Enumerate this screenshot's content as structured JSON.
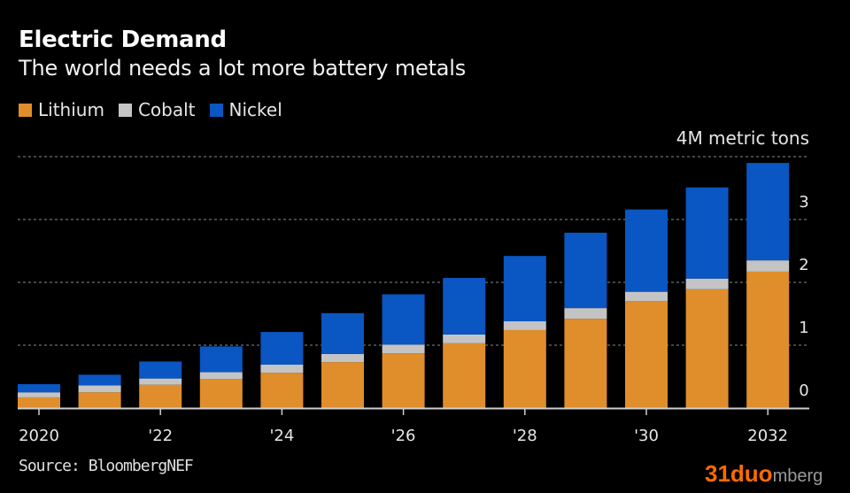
{
  "header": {
    "title": "Electric Demand",
    "subtitle": "The world needs a lot more battery metals"
  },
  "legend": [
    {
      "label": "Lithium",
      "color": "#e08e2b"
    },
    {
      "label": "Cobalt",
      "color": "#c4c4c4"
    },
    {
      "label": "Nickel",
      "color": "#0a56c2"
    }
  ],
  "unit_label": "4M metric tons",
  "source": "Source: BloombergNEF",
  "watermark": {
    "brand": "31duo",
    "rest": "mberg"
  },
  "chart_data": {
    "type": "bar",
    "stacked": true,
    "title": "Electric Demand",
    "subtitle": "The world needs a lot more battery metals",
    "xlabel": "",
    "ylabel": "Million metric tons",
    "ylim": [
      0,
      4
    ],
    "y_ticks": [
      0,
      1,
      2,
      3,
      4
    ],
    "y_tick_labels": [
      "0",
      "1",
      "2",
      "3",
      "4M metric tons"
    ],
    "y_axis_side": "right",
    "grid": true,
    "legend_position": "top-left",
    "categories": [
      "2020",
      "2021",
      "2022",
      "2023",
      "2024",
      "2025",
      "2026",
      "2027",
      "2028",
      "2029",
      "2030",
      "2031",
      "2032"
    ],
    "x_tick_labels": [
      {
        "category": "2020",
        "label": "2020"
      },
      {
        "category": "2022",
        "label": "'22"
      },
      {
        "category": "2024",
        "label": "'24"
      },
      {
        "category": "2026",
        "label": "'26"
      },
      {
        "category": "2028",
        "label": "'28"
      },
      {
        "category": "2030",
        "label": "'30"
      },
      {
        "category": "2032",
        "label": "2032"
      }
    ],
    "series": [
      {
        "name": "Lithium",
        "color": "#e08e2b",
        "values": [
          0.17,
          0.25,
          0.37,
          0.46,
          0.56,
          0.73,
          0.87,
          1.03,
          1.24,
          1.42,
          1.7,
          1.89,
          2.17
        ]
      },
      {
        "name": "Cobalt",
        "color": "#c4c4c4",
        "values": [
          0.08,
          0.11,
          0.1,
          0.11,
          0.13,
          0.13,
          0.14,
          0.14,
          0.14,
          0.17,
          0.15,
          0.17,
          0.18
        ]
      },
      {
        "name": "Nickel",
        "color": "#0a56c2",
        "values": [
          0.13,
          0.17,
          0.27,
          0.41,
          0.52,
          0.65,
          0.8,
          0.9,
          1.04,
          1.2,
          1.31,
          1.45,
          1.55
        ]
      }
    ],
    "source": "Source: BloombergNEF"
  }
}
